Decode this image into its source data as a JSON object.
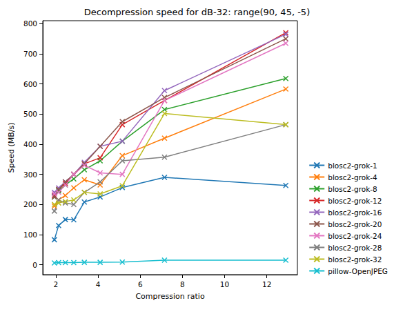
{
  "chart_data": {
    "type": "line",
    "title": "Decompression speed for dB-32: range(90, 45, -5)",
    "x_label": "Compression ratio",
    "y_label": "Speed (MB/s)",
    "x": [
      1.93,
      2.13,
      2.45,
      2.85,
      3.35,
      4.1,
      5.15,
      7.15,
      12.9
    ],
    "xlim": [
      1.38,
      13.45
    ],
    "xticks": [
      2,
      4,
      6,
      8,
      10,
      12
    ],
    "ylim": [
      -33,
      810
    ],
    "yticks": [
      0,
      100,
      200,
      300,
      400,
      500,
      600,
      700,
      800
    ],
    "grid": false,
    "legend": "lower right",
    "marker": "x",
    "line_style": "solid",
    "series": [
      {
        "name": "blosc2-grok-1",
        "color": "#1f77b4",
        "values": [
          83,
          130,
          150,
          149,
          208,
          225,
          256,
          290,
          263
        ]
      },
      {
        "name": "blosc2-grok-4",
        "color": "#ff7f0e",
        "values": [
          195,
          215,
          230,
          255,
          282,
          265,
          362,
          420,
          583
        ]
      },
      {
        "name": "blosc2-grok-8",
        "color": "#2ca02c",
        "values": [
          225,
          245,
          265,
          285,
          315,
          345,
          410,
          515,
          618
        ]
      },
      {
        "name": "blosc2-grok-12",
        "color": "#d62728",
        "values": [
          230,
          250,
          270,
          300,
          335,
          355,
          465,
          545,
          770
        ]
      },
      {
        "name": "blosc2-grok-16",
        "color": "#9467bd",
        "values": [
          240,
          255,
          275,
          300,
          340,
          393,
          410,
          578,
          765
        ]
      },
      {
        "name": "blosc2-grok-20",
        "color": "#8c564b",
        "values": [
          225,
          250,
          275,
          300,
          335,
          393,
          475,
          555,
          750
        ]
      },
      {
        "name": "blosc2-grok-24",
        "color": "#e377c2",
        "values": [
          235,
          240,
          265,
          300,
          330,
          305,
          300,
          545,
          735
        ]
      },
      {
        "name": "blosc2-grok-28",
        "color": "#7f7f7f",
        "values": [
          178,
          215,
          205,
          200,
          240,
          275,
          345,
          357,
          465
        ]
      },
      {
        "name": "blosc2-grok-32",
        "color": "#bcbd22",
        "values": [
          200,
          205,
          210,
          215,
          240,
          235,
          262,
          502,
          465
        ]
      },
      {
        "name": "pillow-OpenJPEG",
        "color": "#17becf",
        "values": [
          6,
          7,
          7,
          7,
          8,
          8,
          9,
          15,
          15
        ]
      }
    ]
  }
}
